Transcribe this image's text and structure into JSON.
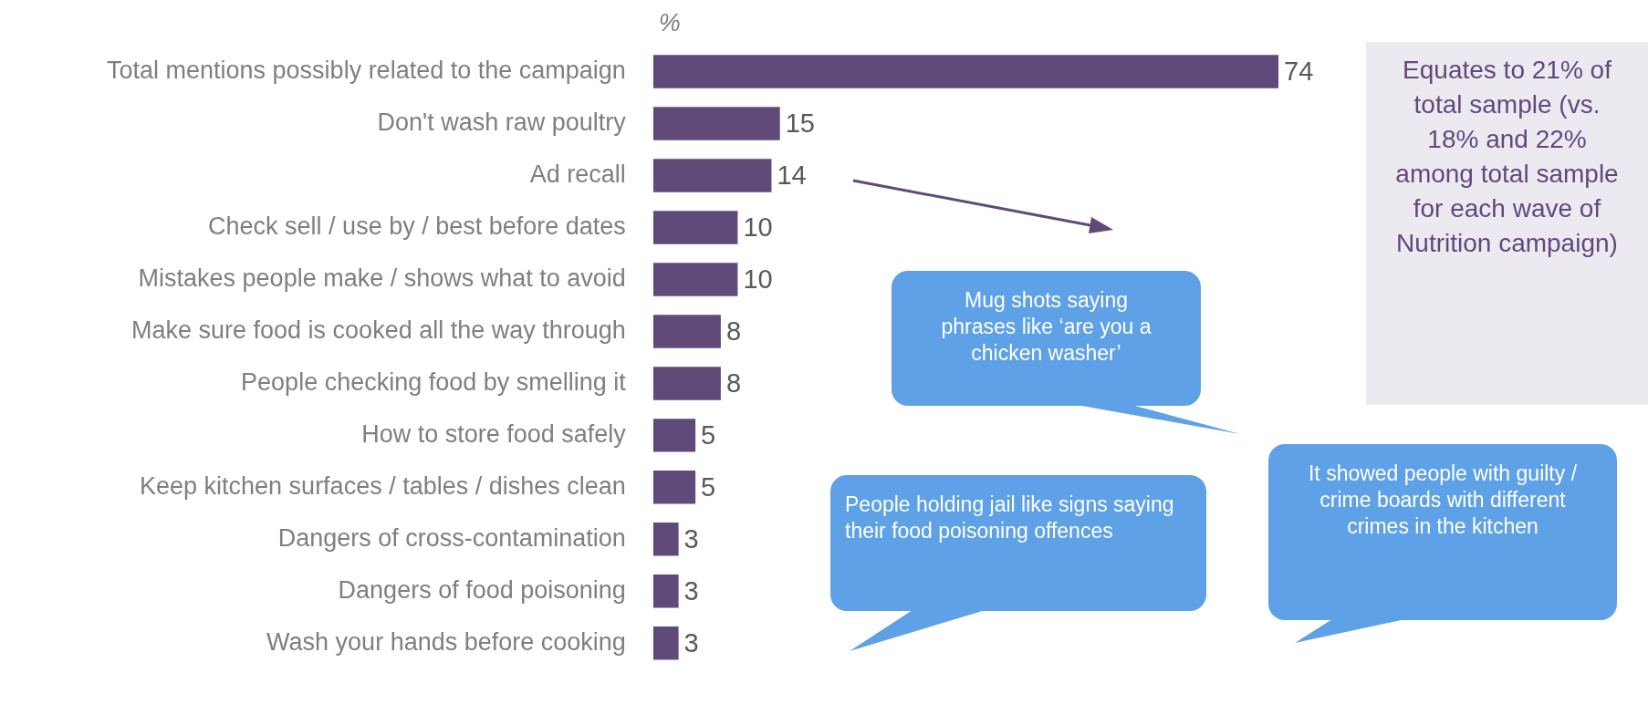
{
  "chart_data": {
    "type": "bar",
    "orientation": "horizontal",
    "title": "%",
    "categories": [
      "Total mentions possibly related to the campaign",
      "Don't wash raw poultry",
      "Ad recall",
      "Check sell / use by / best before dates",
      "Mistakes people make / shows what to avoid",
      "Make sure food is cooked all the way through",
      "People checking food by smelling it",
      "How to store food safely",
      "Keep kitchen surfaces / tables / dishes clean",
      "Dangers of cross-contamination",
      "Dangers of food poisoning",
      "Wash your hands before cooking"
    ],
    "values": [
      74,
      15,
      14,
      10,
      10,
      8,
      8,
      5,
      5,
      3,
      3,
      3
    ],
    "color": "#5f4a7a",
    "data_labels": true,
    "legend": false,
    "annotations": [
      "Equates to 21% of total sample (vs. 18% and 22% among total sample for each wave of Nutrition campaign)",
      "Mug shots saying phrases like ‘are you a chicken washer’",
      "People holding jail like signs saying their food poisoning offences",
      "It showed people with guilty / crime boards with different crimes in the kitchen"
    ]
  }
}
